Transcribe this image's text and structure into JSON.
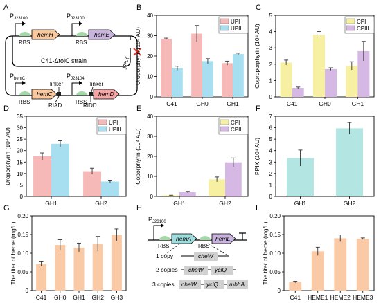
{
  "panels": {
    "A": {
      "letter": "A",
      "strain": "C41-ΔtolC strain",
      "promoters": [
        "P",
        "P",
        "P",
        "P"
      ],
      "promoter_subs": [
        "J23100",
        "J23100",
        "hemC",
        "J23104"
      ],
      "rbs": [
        "RBS",
        "RBS",
        "RBS",
        "RBS"
      ],
      "genes": [
        "hemH",
        "hemE",
        "hemC",
        "hemD"
      ],
      "linkers": [
        "linker",
        "linker"
      ],
      "tags": [
        "RIAD",
        "RIDD"
      ],
      "knockout": "yfeX",
      "colors": {
        "hemH": "#f9c89e",
        "hemE": "#c9b4dd",
        "hemC": "#f9c89e",
        "hemD": "#f4a5a5",
        "rbs": "#a5d8a8"
      }
    },
    "B": {
      "letter": "B"
    },
    "C": {
      "letter": "C"
    },
    "D": {
      "letter": "D"
    },
    "E": {
      "letter": "E"
    },
    "F": {
      "letter": "F"
    },
    "G": {
      "letter": "G"
    },
    "H": {
      "letter": "H",
      "promoter": "P",
      "promoter_sub": "J23100",
      "rbs": [
        "RBS",
        "RBS"
      ],
      "genes": [
        "hemA",
        "hemL"
      ],
      "copies": [
        {
          "label": "1 copy",
          "genes": [
            "cheW"
          ]
        },
        {
          "label": "2 copies",
          "genes": [
            "cheW",
            "yciQ"
          ]
        },
        {
          "label": "3 copies",
          "genes": [
            "cheW",
            "yciQ",
            "mbhA"
          ]
        }
      ],
      "colors": {
        "hemA": "#9fdcdc",
        "hemL": "#c9b4dd",
        "box": "#d0d0d0"
      }
    },
    "I": {
      "letter": "I"
    }
  },
  "chart_data": [
    {
      "id": "B",
      "type": "bar",
      "categories": [
        "C41",
        "GH0",
        "GH1"
      ],
      "series": [
        {
          "name": "UPI",
          "values": [
            28.5,
            31,
            16.5
          ],
          "errors": [
            0.3,
            4,
            1
          ],
          "color": "#f7b8b8"
        },
        {
          "name": "UPIII",
          "values": [
            14,
            17.5,
            21
          ],
          "errors": [
            1,
            1.2,
            0.4
          ],
          "color": "#a8dff0"
        }
      ],
      "xlabel": "",
      "ylabel": "Uroporphyrin (10⁴ AU)",
      "ylim": [
        0,
        40
      ],
      "yticks": [
        0,
        10,
        20,
        30,
        40
      ],
      "legend": "top-right"
    },
    {
      "id": "C",
      "type": "bar",
      "categories": [
        "C41",
        "GH0",
        "GH1"
      ],
      "series": [
        {
          "name": "CPI",
          "values": [
            2.1,
            3.8,
            1.9
          ],
          "errors": [
            0.15,
            0.2,
            0.25
          ],
          "color": "#f7f0a3"
        },
        {
          "name": "CPIII",
          "values": [
            0.55,
            1.7,
            2.8
          ],
          "errors": [
            0.05,
            0.08,
            0.6
          ],
          "color": "#d5b8e3"
        }
      ],
      "xlabel": "",
      "ylabel": "Coproporphyrin (10⁴ AU)",
      "ylim": [
        0,
        5
      ],
      "yticks": [
        0,
        1,
        2,
        3,
        4,
        5
      ],
      "legend": "top-right"
    },
    {
      "id": "D",
      "type": "bar",
      "categories": [
        "GH1",
        "GH2"
      ],
      "series": [
        {
          "name": "UPI",
          "values": [
            17.5,
            11
          ],
          "errors": [
            1.5,
            1.3
          ],
          "color": "#f7b8b8"
        },
        {
          "name": "UPIII",
          "values": [
            23,
            6.5
          ],
          "errors": [
            1.3,
            0.6
          ],
          "color": "#a8dff0"
        }
      ],
      "xlabel": "",
      "ylabel": "Uroporphyrin (10⁴ AU)",
      "ylim": [
        0,
        35
      ],
      "yticks": [
        0,
        5,
        10,
        15,
        20,
        25,
        30,
        35
      ],
      "legend": "top-right"
    },
    {
      "id": "E",
      "type": "bar",
      "categories": [
        "GH1",
        "GH2"
      ],
      "series": [
        {
          "name": "CPI",
          "values": [
            0.5,
            8.5
          ],
          "errors": [
            0.1,
            1.2
          ],
          "color": "#f7f0a3"
        },
        {
          "name": "CPIII",
          "values": [
            2.2,
            17
          ],
          "errors": [
            0.3,
            2.2
          ],
          "color": "#d5b8e3"
        }
      ],
      "xlabel": "",
      "ylabel": "Coporphyrin (10⁴ AU)",
      "ylim": [
        0,
        40
      ],
      "yticks": [
        0,
        10,
        20,
        30,
        40
      ],
      "legend": "top-right"
    },
    {
      "id": "F",
      "type": "bar",
      "categories": [
        "GH1",
        "GH2"
      ],
      "series": [
        {
          "name": "",
          "values": [
            3.35,
            5.95
          ],
          "errors": [
            0.7,
            0.5
          ],
          "color": "#b3e6e3"
        }
      ],
      "xlabel": "",
      "ylabel": "PPIX (10⁴ AU)",
      "ylim": [
        0,
        7
      ],
      "yticks": [
        0,
        1,
        2,
        3,
        4,
        5,
        6,
        7
      ],
      "legend": "none"
    },
    {
      "id": "G",
      "type": "bar",
      "categories": [
        "C41",
        "GH0",
        "GH1",
        "GH2",
        "GH3"
      ],
      "series": [
        {
          "name": "",
          "values": [
            0.071,
            0.122,
            0.115,
            0.125,
            0.149
          ],
          "errors": [
            0.006,
            0.014,
            0.012,
            0.02,
            0.016
          ],
          "color": "#fac9a5"
        }
      ],
      "xlabel": "",
      "ylabel": "The titer of heme (mg/L)",
      "ylim": [
        0,
        0.2
      ],
      "yticks": [
        0,
        0.05,
        0.1,
        0.15,
        0.2
      ],
      "ytick_labels": [
        "0",
        "0.05",
        "0.10",
        "0.15",
        "0.20"
      ],
      "legend": "none"
    },
    {
      "id": "I",
      "type": "bar",
      "categories": [
        "C41",
        "HEME1",
        "HEME2",
        "HEME3"
      ],
      "series": [
        {
          "name": "",
          "values": [
            0.023,
            0.105,
            0.14,
            0.139
          ],
          "errors": [
            0.002,
            0.011,
            0.009,
            0.002
          ],
          "color": "#fac9a5"
        }
      ],
      "xlabel": "",
      "ylabel": "The titer of heme (mg/L)",
      "ylim": [
        0,
        0.2
      ],
      "yticks": [
        0,
        0.05,
        0.1,
        0.15,
        0.2
      ],
      "ytick_labels": [
        "0",
        "0.05",
        "0.10",
        "0.15",
        "0.20"
      ],
      "legend": "none"
    }
  ]
}
